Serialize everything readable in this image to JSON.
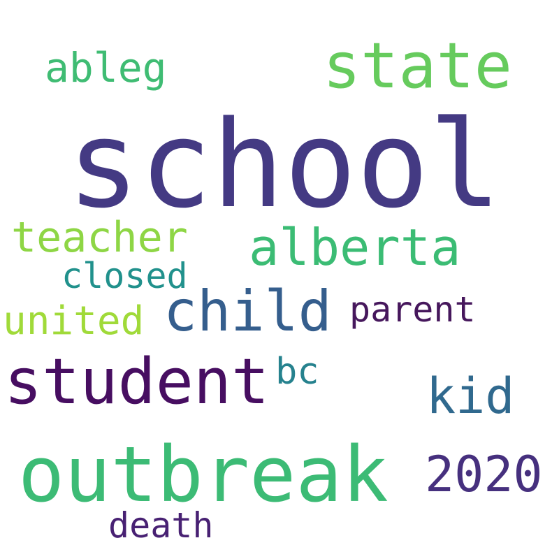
{
  "words": [
    {
      "id": "school",
      "text": "school",
      "color": "#443a83"
    },
    {
      "id": "state",
      "text": "state",
      "color": "#66cb5d"
    },
    {
      "id": "ableg",
      "text": "ableg",
      "color": "#3fbc73"
    },
    {
      "id": "alberta",
      "text": "alberta",
      "color": "#3bbc74"
    },
    {
      "id": "teacher",
      "text": "teacher",
      "color": "#8ed645"
    },
    {
      "id": "closed",
      "text": "closed",
      "color": "#21918c"
    },
    {
      "id": "child",
      "text": "child",
      "color": "#355e8d"
    },
    {
      "id": "parent",
      "text": "parent",
      "color": "#46175c"
    },
    {
      "id": "united",
      "text": "united",
      "color": "#a0da39"
    },
    {
      "id": "student",
      "text": "student",
      "color": "#470e61"
    },
    {
      "id": "bc",
      "text": "bc",
      "color": "#26828e"
    },
    {
      "id": "kid",
      "text": "kid",
      "color": "#30698e"
    },
    {
      "id": "outbreak",
      "text": "outbreak",
      "color": "#3cbb75"
    },
    {
      "id": "2020",
      "text": "2020",
      "color": "#46307e"
    },
    {
      "id": "death",
      "text": "death",
      "color": "#482173"
    }
  ]
}
